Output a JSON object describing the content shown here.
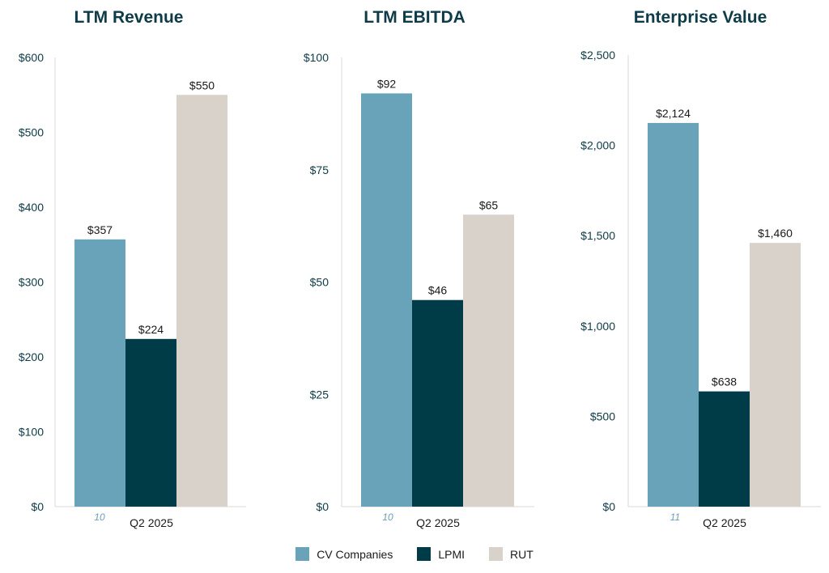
{
  "colors": {
    "cv": "#68a3ba",
    "lpmi": "#003b48",
    "rut": "#d9d2cb"
  },
  "legend": [
    {
      "name": "CV Companies",
      "color": "#68a3ba"
    },
    {
      "name": "LPMI",
      "color": "#003b48"
    },
    {
      "name": "RUT",
      "color": "#d9d2cb"
    }
  ],
  "chart_data": [
    {
      "type": "bar",
      "title": "LTM Revenue",
      "categories": [
        "Q2 2025"
      ],
      "footnote": "10",
      "ylim": [
        0,
        600
      ],
      "yticks": [
        "$0",
        "$100",
        "$200",
        "$300",
        "$400",
        "$500",
        "$600"
      ],
      "ytick_values": [
        0,
        100,
        200,
        300,
        400,
        500,
        600
      ],
      "series": [
        {
          "name": "CV Companies",
          "values": [
            357
          ],
          "label": "$357"
        },
        {
          "name": "LPMI",
          "values": [
            224
          ],
          "label": "$224"
        },
        {
          "name": "RUT",
          "values": [
            550
          ],
          "label": "$550"
        }
      ]
    },
    {
      "type": "bar",
      "title": "LTM EBITDA",
      "categories": [
        "Q2 2025"
      ],
      "footnote": "10",
      "ylim": [
        0,
        100
      ],
      "yticks": [
        "$0",
        "$25",
        "$50",
        "$75",
        "$100"
      ],
      "ytick_values": [
        0,
        25,
        50,
        75,
        100
      ],
      "series": [
        {
          "name": "CV Companies",
          "values": [
            92
          ],
          "label": "$92"
        },
        {
          "name": "LPMI",
          "values": [
            46
          ],
          "label": "$46"
        },
        {
          "name": "RUT",
          "values": [
            65
          ],
          "label": "$65"
        }
      ]
    },
    {
      "type": "bar",
      "title": "Enterprise Value",
      "categories": [
        "Q2 2025"
      ],
      "footnote": "11",
      "ylim": [
        0,
        2500
      ],
      "yticks": [
        "$0",
        "$500",
        "$1,000",
        "$1,500",
        "$2,000",
        "$2,500"
      ],
      "ytick_values": [
        0,
        500,
        1000,
        1500,
        2000,
        2500
      ],
      "series": [
        {
          "name": "CV Companies",
          "values": [
            2124
          ],
          "label": "$2,124"
        },
        {
          "name": "LPMI",
          "values": [
            638
          ],
          "label": "$638"
        },
        {
          "name": "RUT",
          "values": [
            1460
          ],
          "label": "$1,460"
        }
      ]
    }
  ]
}
